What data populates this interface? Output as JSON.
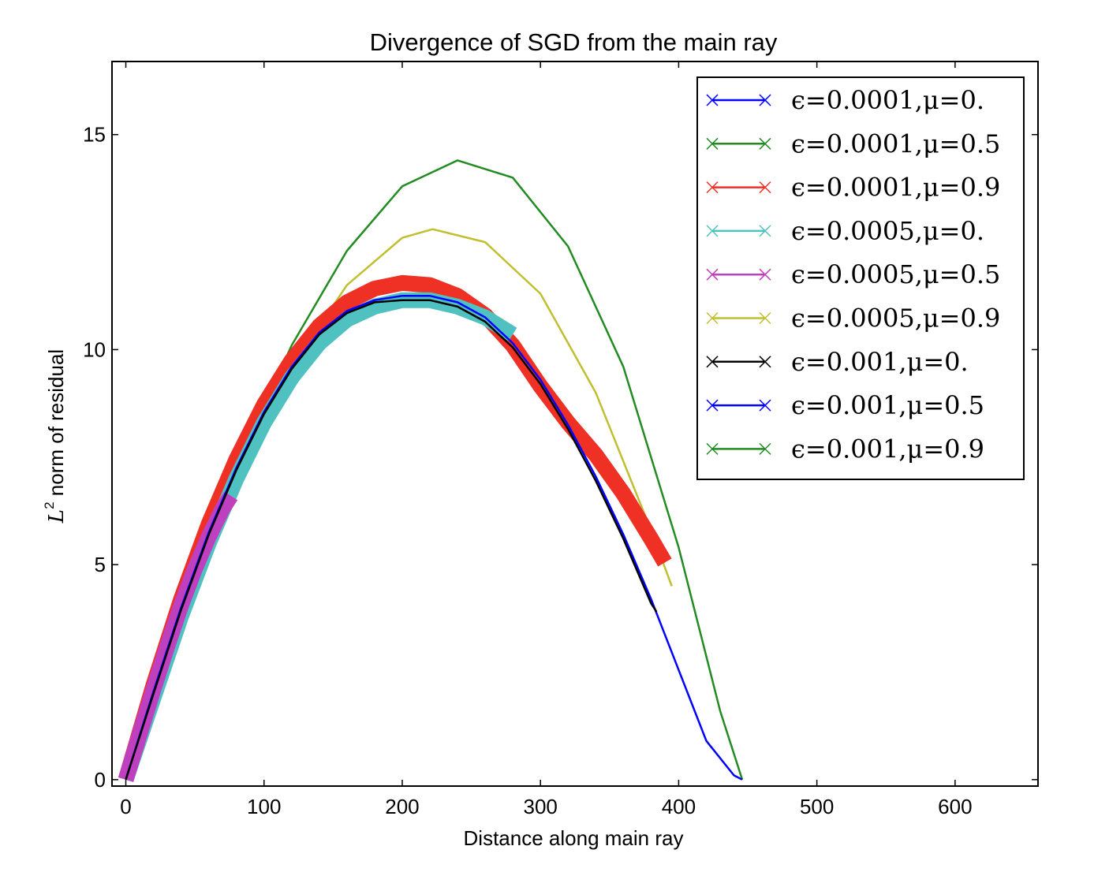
{
  "chart_data": {
    "type": "line",
    "title": "Divergence of SGD from the main ray",
    "xlabel": "Distance along main ray",
    "ylabel": {
      "symbol": "L",
      "superscript": "2",
      "text": "norm of residual"
    },
    "xlim": [
      -10,
      660
    ],
    "ylim": [
      -0.15,
      16.7
    ],
    "xticks": [
      0,
      100,
      200,
      300,
      400,
      500,
      600
    ],
    "xtick_labels": [
      "0",
      "100",
      "200",
      "300",
      "400",
      "500",
      "600"
    ],
    "yticks": [
      0,
      5,
      10,
      15
    ],
    "ytick_labels": [
      "0",
      "5",
      "10",
      "15"
    ],
    "grid": false,
    "legend_position": "top-right",
    "legend": [
      {
        "label": "ϵ=0.0001,μ=0.",
        "color": "#0000ff"
      },
      {
        "label": "ϵ=0.0001,μ=0.5",
        "color": "#228b22"
      },
      {
        "label": "ϵ=0.0001,μ=0.9",
        "color": "#ee3124"
      },
      {
        "label": "ϵ=0.0005,μ=0.",
        "color": "#4fc1c1"
      },
      {
        "label": "ϵ=0.0005,μ=0.5",
        "color": "#bf40bf"
      },
      {
        "label": "ϵ=0.0005,μ=0.9",
        "color": "#bfbf2f"
      },
      {
        "label": "ϵ=0.001,μ=0.",
        "color": "#000000"
      },
      {
        "label": "ϵ=0.001,μ=0.5",
        "color": "#0000ff"
      },
      {
        "label": "ϵ=0.001,μ=0.9",
        "color": "#228b22"
      }
    ],
    "series": [
      {
        "color": "#228b22",
        "dense_markers": false,
        "x": [
          0,
          40,
          80,
          120,
          160,
          200,
          240,
          280,
          320,
          360,
          400,
          430,
          446
        ],
        "y": [
          0.0,
          3.9,
          7.3,
          10.1,
          12.3,
          13.8,
          14.4,
          14.0,
          12.4,
          9.6,
          5.4,
          1.6,
          0.0
        ]
      },
      {
        "color": "#bfbf2f",
        "dense_markers": false,
        "x": [
          0,
          40,
          80,
          120,
          160,
          200,
          222,
          260,
          300,
          340,
          380,
          395
        ],
        "y": [
          0.0,
          3.8,
          7.0,
          9.6,
          11.5,
          12.6,
          12.8,
          12.5,
          11.3,
          9.0,
          5.8,
          4.5
        ]
      },
      {
        "color": "#ee3124",
        "dense_markers": true,
        "x": [
          0,
          20,
          40,
          60,
          80,
          100,
          120,
          140,
          160,
          180,
          200,
          220,
          240,
          260,
          280,
          300,
          320,
          340,
          360,
          380,
          390
        ],
        "y": [
          0.0,
          2.2,
          4.2,
          5.95,
          7.45,
          8.72,
          9.75,
          10.55,
          11.1,
          11.42,
          11.55,
          11.5,
          11.25,
          10.8,
          10.1,
          9.15,
          8.3,
          7.55,
          6.65,
          5.6,
          5.05
        ]
      },
      {
        "color": "#4fc1c1",
        "dense_markers": true,
        "x": [
          0,
          20,
          40,
          60,
          80,
          100,
          120,
          140,
          160,
          180,
          200,
          220,
          240,
          260,
          280
        ],
        "y": [
          0.0,
          1.9,
          3.8,
          5.5,
          7.0,
          8.3,
          9.35,
          10.15,
          10.7,
          11.0,
          11.15,
          11.15,
          11.0,
          10.75,
          10.35
        ]
      },
      {
        "color": "#bf40bf",
        "dense_markers": true,
        "x": [
          0,
          10,
          20,
          30,
          40,
          50,
          60,
          70,
          76
        ],
        "y": [
          0.0,
          1.05,
          2.1,
          3.1,
          4.05,
          4.9,
          5.65,
          6.3,
          6.6
        ]
      },
      {
        "color": "#0000ff",
        "dense_markers": false,
        "x": [
          0,
          20,
          40,
          60,
          80,
          100,
          120,
          140,
          160,
          180,
          200,
          220,
          240,
          260,
          280,
          300,
          320,
          340,
          360,
          380,
          400,
          420,
          440,
          446
        ],
        "y": [
          0.0,
          2.05,
          4.0,
          5.75,
          7.25,
          8.55,
          9.6,
          10.4,
          10.9,
          11.15,
          11.25,
          11.25,
          11.1,
          10.75,
          10.15,
          9.3,
          8.25,
          7.05,
          5.7,
          4.2,
          2.55,
          0.9,
          0.1,
          0.0
        ]
      },
      {
        "color": "#000000",
        "dense_markers": false,
        "x": [
          0,
          20,
          40,
          60,
          80,
          100,
          120,
          140,
          160,
          180,
          200,
          220,
          240,
          260,
          280,
          300,
          320,
          340,
          360,
          380,
          384
        ],
        "y": [
          0.0,
          2.0,
          3.95,
          5.7,
          7.2,
          8.5,
          9.55,
          10.35,
          10.85,
          11.1,
          11.15,
          11.15,
          11.0,
          10.65,
          10.05,
          9.2,
          8.15,
          6.95,
          5.6,
          4.1,
          3.9
        ]
      }
    ]
  }
}
